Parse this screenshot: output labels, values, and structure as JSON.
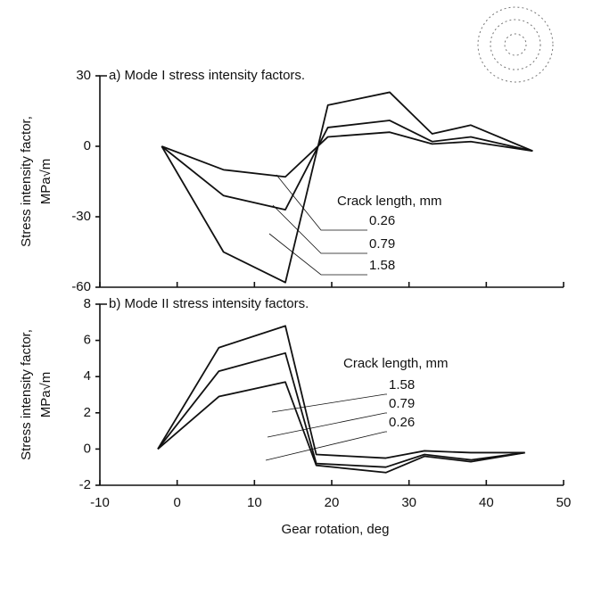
{
  "chart_data": [
    {
      "type": "line",
      "title": "a) Mode I stress intensity factors.",
      "ylabel": [
        "Stress intensity factor,",
        "MPa√m"
      ],
      "legend_title": "Crack length, mm",
      "xlim": [
        -10,
        50
      ],
      "xticks": [
        -10,
        0,
        10,
        20,
        30,
        40,
        50
      ],
      "xtick_labels": false,
      "ylim": [
        -60,
        30
      ],
      "yticks": [
        -60,
        -30,
        0,
        30
      ],
      "x": [
        -2,
        6,
        14,
        19.5,
        27.5,
        33,
        38,
        46
      ],
      "series": [
        {
          "name": "0.26",
          "color": "#111111",
          "values": [
            0,
            -10,
            -13,
            4,
            6,
            1,
            2,
            -2
          ]
        },
        {
          "name": "0.79",
          "color": "#111111",
          "values": [
            0,
            -21,
            -27,
            8,
            11,
            2,
            4,
            -2
          ]
        },
        {
          "name": "1.58",
          "color": "#111111",
          "values": [
            0,
            -45,
            -58,
            17.5,
            23,
            5.3,
            9,
            -2
          ]
        }
      ]
    },
    {
      "type": "line",
      "title": "b) Mode II stress intensity factors.",
      "ylabel": [
        "Stress intensity factor,",
        "MPa√m"
      ],
      "xlabel": "Gear rotation, deg",
      "legend_title": "Crack length, mm",
      "xlim": [
        -10,
        50
      ],
      "xticks": [
        -10,
        0,
        10,
        20,
        30,
        40,
        50
      ],
      "xtick_labels": true,
      "ylim": [
        -2,
        8
      ],
      "yticks": [
        -2,
        0,
        2,
        4,
        6,
        8
      ],
      "x": [
        -2.5,
        5.4,
        14,
        18,
        27,
        32,
        38,
        45
      ],
      "series": [
        {
          "name": "1.58",
          "color": "#111111",
          "values": [
            0,
            5.6,
            6.8,
            -0.3,
            -0.5,
            -0.1,
            -0.2,
            -0.2
          ]
        },
        {
          "name": "0.79",
          "color": "#111111",
          "values": [
            0,
            4.3,
            5.3,
            -0.8,
            -1.0,
            -0.3,
            -0.6,
            -0.2
          ]
        },
        {
          "name": "0.26",
          "color": "#111111",
          "values": [
            0,
            2.9,
            3.7,
            -0.9,
            -1.3,
            -0.4,
            -0.7,
            -0.2
          ]
        }
      ]
    }
  ]
}
